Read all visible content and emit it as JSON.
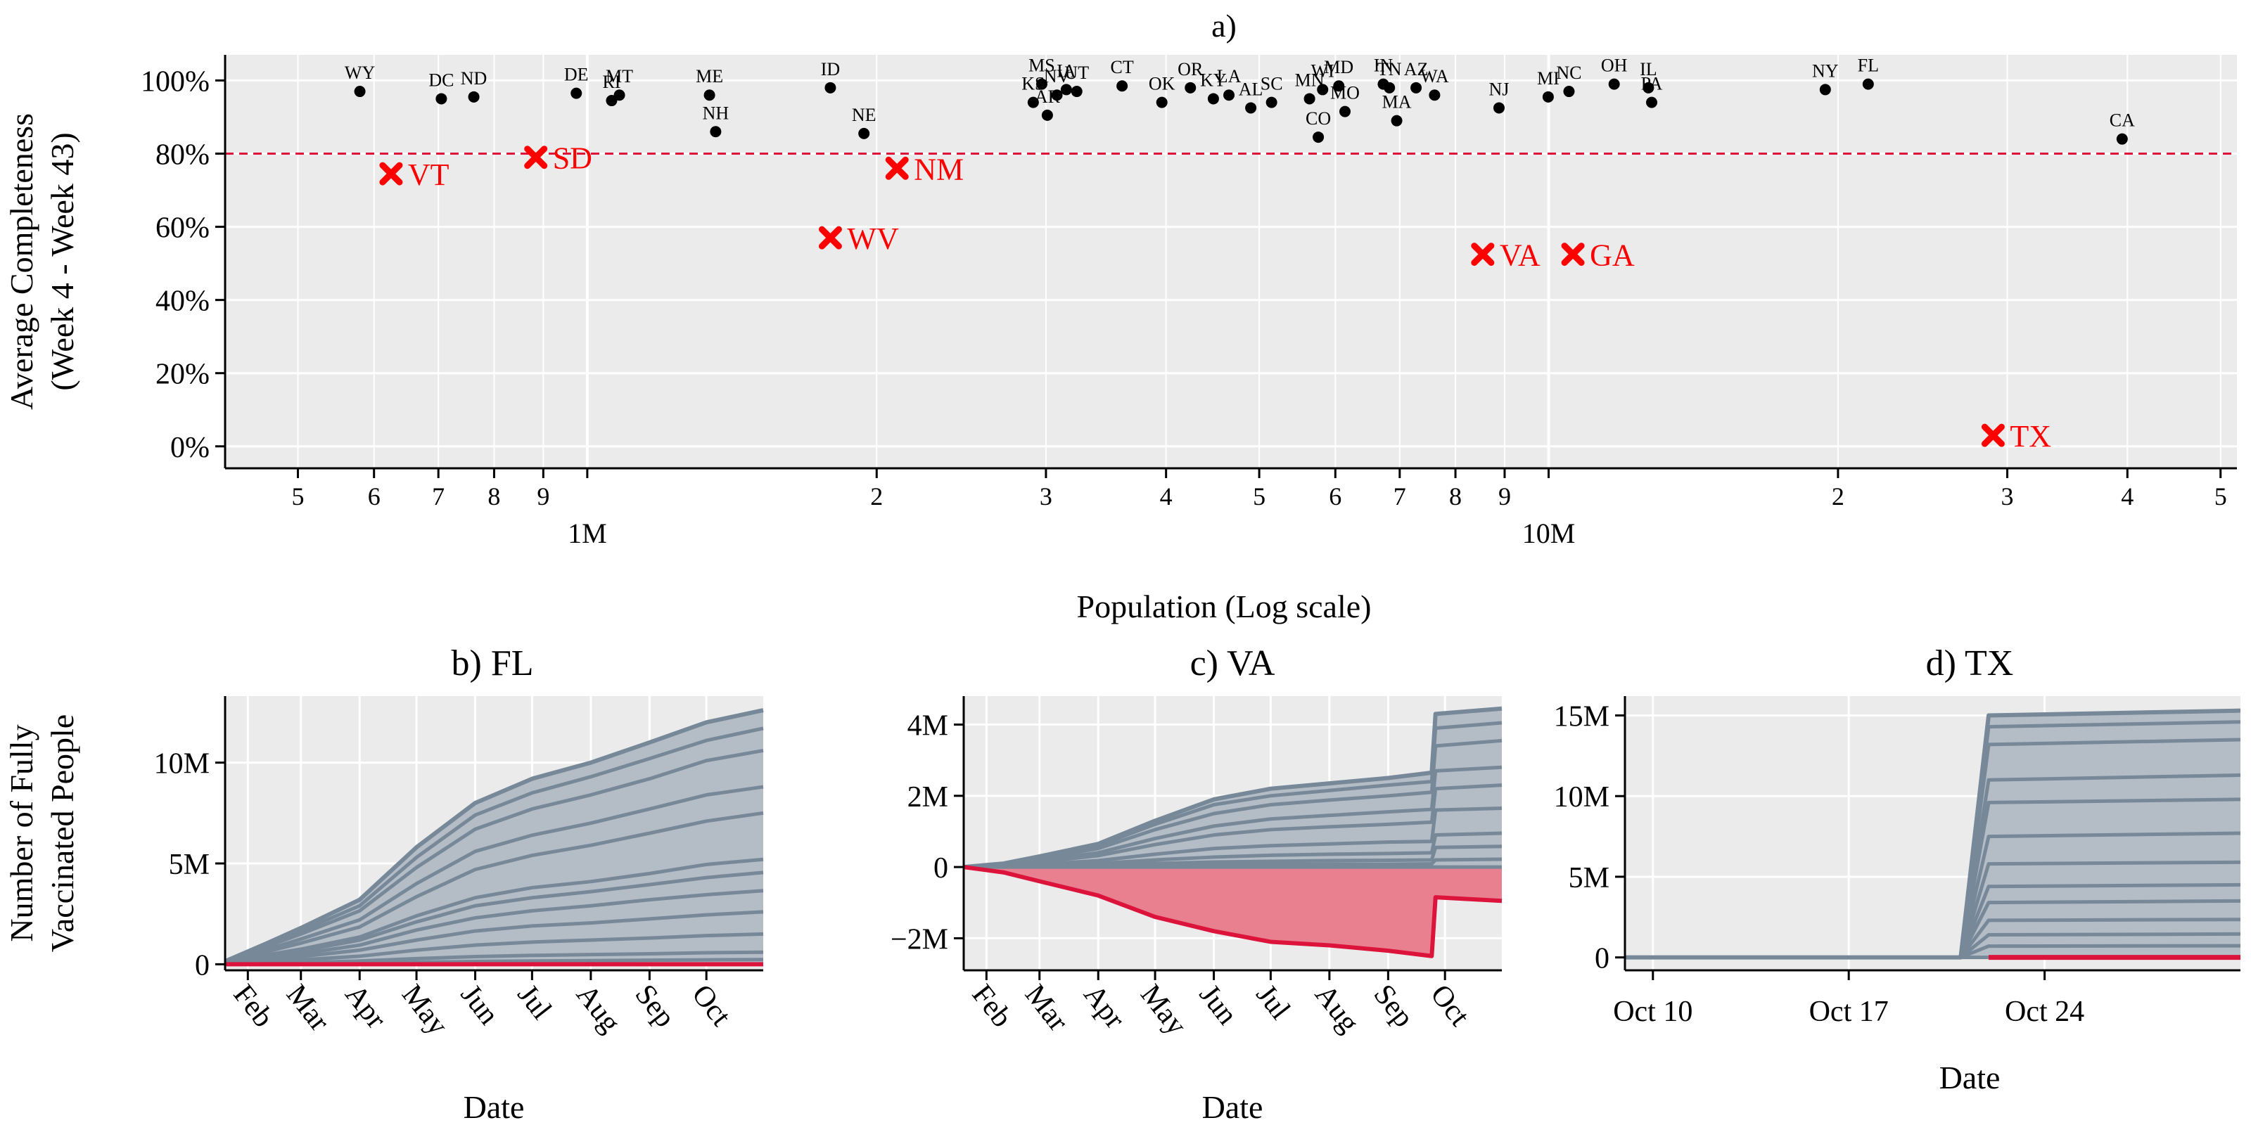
{
  "figure": {
    "panel_a_title": "a)",
    "panel_b_title": "b) FL",
    "panel_c_title": "c) VA",
    "panel_d_title": "d) TX"
  },
  "colors": {
    "panel_bg": "#ebebeb",
    "grid": "#ffffff",
    "ok_point": "#000000",
    "bad_marker": "#ff0000",
    "threshold_line": "#dc143c",
    "band_line": "#778899",
    "band_fill": "#b4bcc6",
    "neg_fill": "#e88090",
    "neg_line": "#dc143c"
  },
  "chart_data": [
    {
      "id": "a",
      "type": "scatter",
      "title": "a)",
      "xlabel": "Population (Log scale)",
      "ylabel_lines": [
        "Average Completeness",
        "(Week 4 - Week 43)"
      ],
      "x_scale": "log",
      "xlim": [
        420000,
        52000000
      ],
      "ylim": [
        -0.06,
        1.07
      ],
      "yticks": [
        0,
        0.2,
        0.4,
        0.6,
        0.8,
        1.0
      ],
      "ytick_labels": [
        "0%",
        "20%",
        "40%",
        "60%",
        "80%",
        "100%"
      ],
      "minor_xticks": [
        {
          "value": 500000,
          "label": "5"
        },
        {
          "value": 600000,
          "label": "6"
        },
        {
          "value": 700000,
          "label": "7"
        },
        {
          "value": 800000,
          "label": "8"
        },
        {
          "value": 900000,
          "label": "9"
        },
        {
          "value": 2000000,
          "label": "2"
        },
        {
          "value": 3000000,
          "label": "3"
        },
        {
          "value": 4000000,
          "label": "4"
        },
        {
          "value": 5000000,
          "label": "5"
        },
        {
          "value": 6000000,
          "label": "6"
        },
        {
          "value": 7000000,
          "label": "7"
        },
        {
          "value": 8000000,
          "label": "8"
        },
        {
          "value": 9000000,
          "label": "9"
        },
        {
          "value": 20000000,
          "label": "2"
        },
        {
          "value": 30000000,
          "label": "3"
        },
        {
          "value": 40000000,
          "label": "4"
        },
        {
          "value": 50000000,
          "label": "5"
        }
      ],
      "major_xticks": [
        {
          "value": 1000000,
          "label": "1M"
        },
        {
          "value": 10000000,
          "label": "10M"
        }
      ],
      "threshold": 0.8,
      "points_ok": [
        {
          "label": "WY",
          "x": 580000,
          "y": 0.97
        },
        {
          "label": "DC",
          "x": 705000,
          "y": 0.95
        },
        {
          "label": "ND",
          "x": 762000,
          "y": 0.955
        },
        {
          "label": "DE",
          "x": 974000,
          "y": 0.965
        },
        {
          "label": "RI",
          "x": 1060000,
          "y": 0.945
        },
        {
          "label": "MT",
          "x": 1080000,
          "y": 0.96
        },
        {
          "label": "ME",
          "x": 1340000,
          "y": 0.96
        },
        {
          "label": "NH",
          "x": 1360000,
          "y": 0.86
        },
        {
          "label": "ID",
          "x": 1790000,
          "y": 0.98
        },
        {
          "label": "NE",
          "x": 1940000,
          "y": 0.855
        },
        {
          "label": "KS",
          "x": 2910000,
          "y": 0.94
        },
        {
          "label": "MS",
          "x": 2970000,
          "y": 0.99
        },
        {
          "label": "AR",
          "x": 3010000,
          "y": 0.905
        },
        {
          "label": "NV",
          "x": 3080000,
          "y": 0.96
        },
        {
          "label": "IA",
          "x": 3150000,
          "y": 0.975
        },
        {
          "label": "UT",
          "x": 3230000,
          "y": 0.97
        },
        {
          "label": "CT",
          "x": 3600000,
          "y": 0.985
        },
        {
          "label": "OK",
          "x": 3960000,
          "y": 0.94
        },
        {
          "label": "OR",
          "x": 4240000,
          "y": 0.98
        },
        {
          "label": "KY",
          "x": 4480000,
          "y": 0.95
        },
        {
          "label": "LA",
          "x": 4650000,
          "y": 0.96
        },
        {
          "label": "AL",
          "x": 4900000,
          "y": 0.925
        },
        {
          "label": "SC",
          "x": 5150000,
          "y": 0.94
        },
        {
          "label": "MN",
          "x": 5640000,
          "y": 0.95
        },
        {
          "label": "CO",
          "x": 5760000,
          "y": 0.845
        },
        {
          "label": "WI",
          "x": 5820000,
          "y": 0.975
        },
        {
          "label": "MD",
          "x": 6050000,
          "y": 0.985
        },
        {
          "label": "MO",
          "x": 6140000,
          "y": 0.915
        },
        {
          "label": "IN",
          "x": 6730000,
          "y": 0.99
        },
        {
          "label": "TN",
          "x": 6830000,
          "y": 0.98
        },
        {
          "label": "MA",
          "x": 6950000,
          "y": 0.89
        },
        {
          "label": "AZ",
          "x": 7280000,
          "y": 0.98
        },
        {
          "label": "WA",
          "x": 7610000,
          "y": 0.96
        },
        {
          "label": "NJ",
          "x": 8880000,
          "y": 0.925
        },
        {
          "label": "MI",
          "x": 9990000,
          "y": 0.955
        },
        {
          "label": "NC",
          "x": 10500000,
          "y": 0.97
        },
        {
          "label": "OH",
          "x": 11700000,
          "y": 0.99
        },
        {
          "label": "IL",
          "x": 12700000,
          "y": 0.98
        },
        {
          "label": "PA",
          "x": 12800000,
          "y": 0.94
        },
        {
          "label": "NY",
          "x": 19400000,
          "y": 0.975
        },
        {
          "label": "FL",
          "x": 21500000,
          "y": 0.99
        },
        {
          "label": "CA",
          "x": 39500000,
          "y": 0.84
        }
      ],
      "points_flagged": [
        {
          "label": "VT",
          "x": 625000,
          "y": 0.745
        },
        {
          "label": "SD",
          "x": 884000,
          "y": 0.79
        },
        {
          "label": "WV",
          "x": 1790000,
          "y": 0.57
        },
        {
          "label": "NM",
          "x": 2100000,
          "y": 0.76
        },
        {
          "label": "VA",
          "x": 8540000,
          "y": 0.525
        },
        {
          "label": "GA",
          "x": 10600000,
          "y": 0.525
        },
        {
          "label": "TX",
          "x": 29000000,
          "y": 0.03
        }
      ]
    },
    {
      "id": "b",
      "type": "area",
      "title": "b) FL",
      "xlabel": "Date",
      "ylabel_lines": [
        "Number of Fully",
        "Vaccinated People"
      ],
      "x_is_date": true,
      "xlim": [
        "2021-01-20",
        "2021-10-31"
      ],
      "ylim": [
        -300000,
        13300000
      ],
      "yticks": [
        0,
        5000000,
        10000000
      ],
      "ytick_labels": [
        "0",
        "5M",
        "10M"
      ],
      "xticks": [
        "2021-02-01",
        "2021-03-01",
        "2021-04-01",
        "2021-05-01",
        "2021-06-01",
        "2021-07-01",
        "2021-08-01",
        "2021-09-01",
        "2021-10-01"
      ],
      "xtick_labels": [
        "Feb",
        "Mar",
        "Apr",
        "May",
        "Jun",
        "Jul",
        "Aug",
        "Sep",
        "Oct"
      ],
      "band_curves_dates": [
        "2021-01-20",
        "2021-02-10",
        "2021-03-01",
        "2021-04-01",
        "2021-05-01",
        "2021-06-01",
        "2021-07-01",
        "2021-08-01",
        "2021-09-01",
        "2021-10-01",
        "2021-10-31"
      ],
      "band_curves": [
        [
          0.15,
          1.0,
          1.8,
          3.2,
          5.8,
          8.0,
          9.2,
          10.0,
          11.0,
          12.0,
          12.6
        ],
        [
          0.14,
          0.92,
          1.65,
          2.9,
          5.3,
          7.4,
          8.5,
          9.3,
          10.2,
          11.1,
          11.7
        ],
        [
          0.13,
          0.85,
          1.5,
          2.65,
          4.8,
          6.7,
          7.7,
          8.4,
          9.2,
          10.1,
          10.6
        ],
        [
          0.11,
          0.7,
          1.25,
          2.2,
          4.0,
          5.6,
          6.4,
          7.0,
          7.7,
          8.4,
          8.8
        ],
        [
          0.09,
          0.6,
          1.05,
          1.85,
          3.35,
          4.7,
          5.4,
          5.9,
          6.5,
          7.1,
          7.5
        ],
        [
          0.06,
          0.45,
          0.75,
          1.35,
          2.4,
          3.3,
          3.8,
          4.1,
          4.5,
          4.95,
          5.2
        ],
        [
          0.05,
          0.38,
          0.66,
          1.2,
          2.1,
          2.9,
          3.3,
          3.6,
          3.95,
          4.3,
          4.55
        ],
        [
          0.04,
          0.3,
          0.52,
          0.95,
          1.7,
          2.3,
          2.65,
          2.9,
          3.2,
          3.45,
          3.65
        ],
        [
          0.03,
          0.22,
          0.38,
          0.7,
          1.2,
          1.65,
          1.9,
          2.05,
          2.25,
          2.45,
          2.6
        ],
        [
          0.02,
          0.12,
          0.22,
          0.4,
          0.7,
          0.95,
          1.1,
          1.2,
          1.3,
          1.42,
          1.5
        ],
        [
          0.01,
          0.05,
          0.09,
          0.16,
          0.28,
          0.38,
          0.44,
          0.48,
          0.52,
          0.57,
          0.6
        ],
        [
          0.0,
          0.02,
          0.03,
          0.06,
          0.1,
          0.14,
          0.16,
          0.18,
          0.2,
          0.22,
          0.23
        ]
      ],
      "band_unit": 1000000,
      "red_curve": [
        0,
        0,
        0,
        0,
        0,
        0,
        0,
        0,
        0,
        0,
        0
      ]
    },
    {
      "id": "c",
      "type": "area",
      "title": "c) VA",
      "xlabel": "Date",
      "x_is_date": true,
      "xlim": [
        "2021-01-20",
        "2021-10-31"
      ],
      "ylim": [
        -2900000,
        4800000
      ],
      "yticks": [
        -2000000,
        0,
        2000000,
        4000000
      ],
      "ytick_labels": [
        "−2M",
        "0",
        "2M",
        "4M"
      ],
      "xticks": [
        "2021-02-01",
        "2021-03-01",
        "2021-04-01",
        "2021-05-01",
        "2021-06-01",
        "2021-07-01",
        "2021-08-01",
        "2021-09-01",
        "2021-10-01"
      ],
      "xtick_labels": [
        "Feb",
        "Mar",
        "Apr",
        "May",
        "Jun",
        "Jul",
        "Aug",
        "Sep",
        "Oct"
      ],
      "band_curves_dates": [
        "2021-01-20",
        "2021-02-10",
        "2021-03-01",
        "2021-04-01",
        "2021-05-01",
        "2021-06-01",
        "2021-07-01",
        "2021-08-01",
        "2021-09-01",
        "2021-09-24",
        "2021-09-26",
        "2021-10-31"
      ],
      "band_curves": [
        [
          0,
          0.1,
          0.3,
          0.65,
          1.3,
          1.9,
          2.2,
          2.35,
          2.5,
          2.65,
          4.3,
          4.45
        ],
        [
          0,
          0.09,
          0.27,
          0.6,
          1.2,
          1.75,
          2.0,
          2.15,
          2.3,
          2.4,
          3.9,
          4.05
        ],
        [
          0,
          0.08,
          0.24,
          0.52,
          1.05,
          1.5,
          1.75,
          1.88,
          2.0,
          2.1,
          3.4,
          3.55
        ],
        [
          0,
          0.06,
          0.18,
          0.4,
          0.8,
          1.15,
          1.35,
          1.45,
          1.55,
          1.62,
          2.7,
          2.8
        ],
        [
          0,
          0.05,
          0.14,
          0.32,
          0.63,
          0.9,
          1.05,
          1.13,
          1.2,
          1.26,
          2.2,
          2.3
        ],
        [
          0,
          0.03,
          0.08,
          0.18,
          0.36,
          0.52,
          0.6,
          0.65,
          0.7,
          0.72,
          1.6,
          1.65
        ],
        [
          0,
          0.02,
          0.05,
          0.1,
          0.2,
          0.28,
          0.33,
          0.36,
          0.38,
          0.4,
          0.9,
          0.95
        ],
        [
          0,
          0.01,
          0.02,
          0.05,
          0.1,
          0.14,
          0.16,
          0.18,
          0.19,
          0.2,
          0.55,
          0.58
        ],
        [
          0,
          0.0,
          0.01,
          0.02,
          0.04,
          0.06,
          0.07,
          0.08,
          0.08,
          0.09,
          0.2,
          0.22
        ]
      ],
      "band_unit": 1000000,
      "red_curve": [
        0,
        -0.15,
        -0.4,
        -0.8,
        -1.4,
        -1.8,
        -2.1,
        -2.2,
        -2.35,
        -2.5,
        -0.85,
        -0.95
      ]
    },
    {
      "id": "d",
      "type": "area",
      "title": "d) TX",
      "xlabel": "Date",
      "x_is_date": true,
      "xlim": [
        "2021-10-09",
        "2021-10-31"
      ],
      "ylim": [
        -800000,
        16200000
      ],
      "yticks": [
        0,
        5000000,
        10000000,
        15000000
      ],
      "ytick_labels": [
        "0",
        "5M",
        "10M",
        "15M"
      ],
      "xticks": [
        "2021-10-10",
        "2021-10-17",
        "2021-10-24"
      ],
      "xtick_labels": [
        "Oct 10",
        "Oct 17",
        "Oct 24"
      ],
      "band_curves_dates": [
        "2021-10-09",
        "2021-10-21",
        "2021-10-22",
        "2021-10-31"
      ],
      "band_curves": [
        [
          0,
          0,
          15.0,
          15.3
        ],
        [
          0,
          0,
          14.3,
          14.6
        ],
        [
          0,
          0,
          13.2,
          13.5
        ],
        [
          0,
          0,
          11.0,
          11.3
        ],
        [
          0,
          0,
          9.6,
          9.8
        ],
        [
          0,
          0,
          7.5,
          7.7
        ],
        [
          0,
          0,
          5.8,
          5.9
        ],
        [
          0,
          0,
          4.4,
          4.5
        ],
        [
          0,
          0,
          3.4,
          3.5
        ],
        [
          0,
          0,
          2.3,
          2.35
        ],
        [
          0,
          0,
          1.4,
          1.45
        ],
        [
          0,
          0,
          0.7,
          0.72
        ]
      ],
      "band_unit": 1000000,
      "red_segment": {
        "start": "2021-10-22",
        "end": "2021-10-31",
        "value": 0
      }
    }
  ]
}
